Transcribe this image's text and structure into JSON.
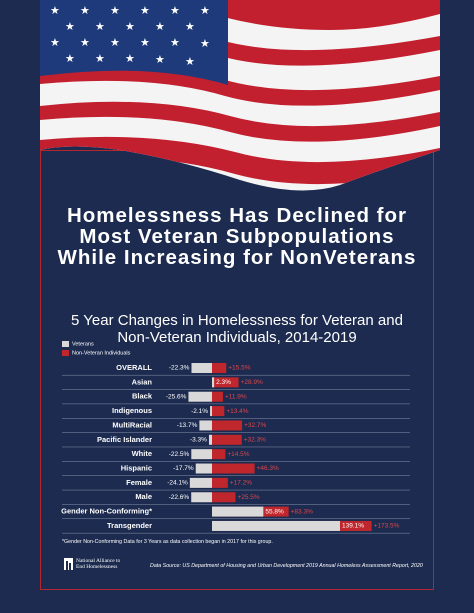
{
  "chart_data": {
    "type": "bar",
    "orientation": "horizontal",
    "title": "Homelessness Has Declined for Most Veteran Subpopulations While Increasing for NonVeterans",
    "subtitle": "5 Year Changes in Homelessness for Veteran and Non-Veteran Individuals, 2014-2019",
    "categories": [
      "OVERALL",
      "Asian",
      "Black",
      "Indigenous",
      "MultiRacial",
      "Pacific Islander",
      "White",
      "Hispanic",
      "Female",
      "Male",
      "Gender Non-Conforming*",
      "Transgender"
    ],
    "series": [
      {
        "name": "Veterans",
        "color": "#d9d9d9",
        "values": [
          -22.3,
          2.3,
          -25.6,
          -2.1,
          -13.7,
          -3.3,
          -22.5,
          -17.7,
          -24.1,
          -22.6,
          55.8,
          139.1
        ],
        "value_labels": [
          "-22.3%",
          "2.3%",
          "-25.6%",
          "-2.1%",
          "-13.7%",
          "-3.3%",
          "-22.5%",
          "-17.7%",
          "-24.1%",
          "-22.6%",
          "55.8%",
          "139.1%"
        ]
      },
      {
        "name": "Non-Veteran Individuals",
        "color": "#c0272d",
        "values": [
          15.5,
          28.9,
          11.9,
          13.4,
          32.7,
          32.3,
          14.5,
          46.3,
          17.2,
          25.5,
          83.3,
          173.5
        ],
        "value_labels": [
          "+15.5%",
          "+28.9%",
          "+11.9%",
          "+13.4%",
          "+32.7%",
          "+32.3%",
          "+14.5%",
          "+46.3%",
          "+17.2%",
          "+25.5%",
          "+83.3%",
          "+173.5%"
        ]
      }
    ],
    "footnote": "*Gender Non-Conforming Data for 3 Years as data collection began in 2017 for this group.",
    "source": "Data Source: US Department of Housing and Urban Development 2019 Annual Homeless Assessment Report, 2020",
    "logo_lines": [
      "National Alliance to",
      "End Homelessness"
    ]
  }
}
